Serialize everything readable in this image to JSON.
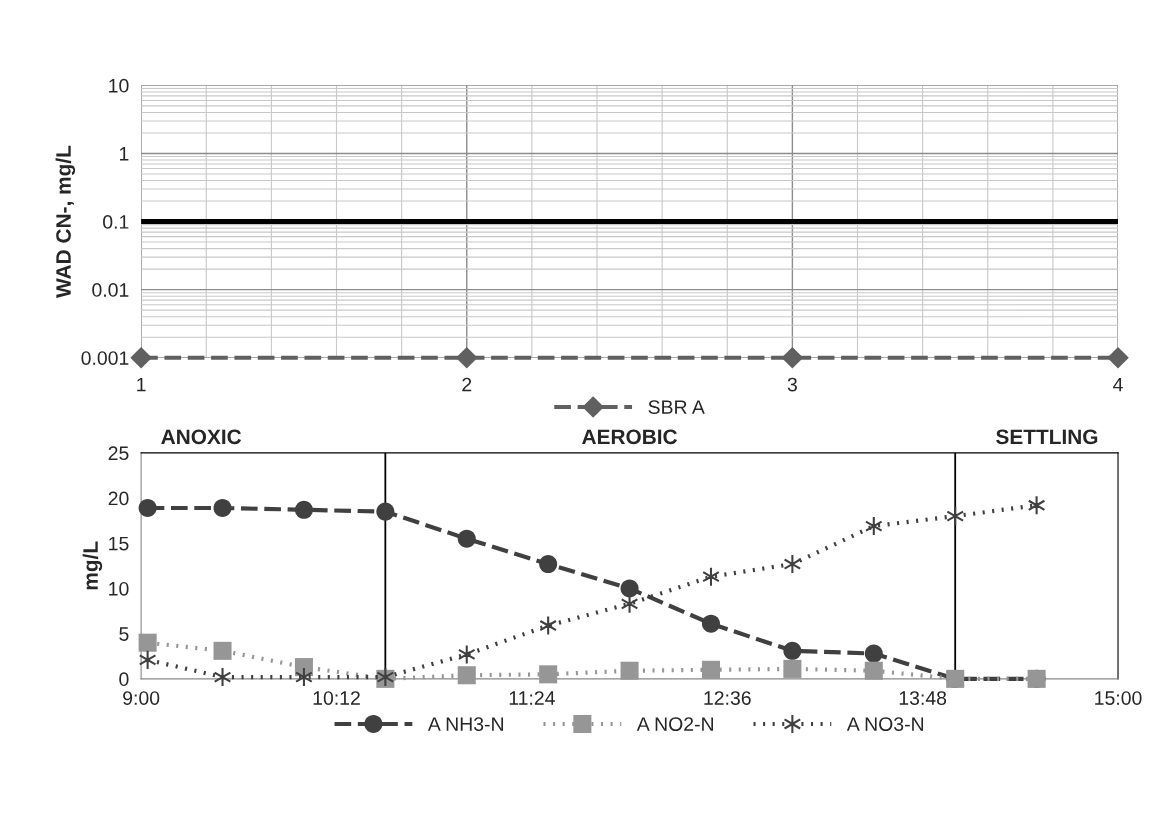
{
  "chart_data": [
    {
      "type": "line",
      "ylabel": "WAD CN-, mg/L",
      "x": [
        1,
        2,
        3,
        4
      ],
      "log": "y",
      "ylim": [
        0.001,
        10
      ],
      "yticks": [
        0.001,
        0.01,
        0.1,
        1,
        10
      ],
      "xlim": [
        1,
        4
      ],
      "xticks": [
        1,
        2,
        3,
        4
      ],
      "grid": true,
      "legend": "bottom",
      "marker": "diamond",
      "line_style": "dashed",
      "series": [
        {
          "name": "SBR A",
          "color": "#606060",
          "values": [
            0.001,
            0.001,
            0.001,
            0.001
          ]
        }
      ],
      "ref_lines": [
        {
          "axis": "y",
          "value": 0.1,
          "color": "#000000"
        }
      ]
    },
    {
      "type": "line",
      "ylabel": "mg/L",
      "x": [
        9.04,
        9.5,
        10.0,
        10.5,
        11.0,
        11.5,
        12.0,
        12.5,
        13.0,
        13.5,
        14.0,
        14.5
      ],
      "xlim": [
        9,
        15
      ],
      "xticks": [
        {
          "value": 9,
          "label": "9:00"
        },
        {
          "value": 10.2,
          "label": "10:12"
        },
        {
          "value": 11.4,
          "label": "11:24"
        },
        {
          "value": 12.6,
          "label": "12:36"
        },
        {
          "value": 13.8,
          "label": "13:48"
        },
        {
          "value": 15,
          "label": "15:00"
        }
      ],
      "ylim": [
        0,
        25
      ],
      "yticks": [
        0,
        5,
        10,
        15,
        20,
        25
      ],
      "grid": false,
      "legend": "bottom",
      "series": [
        {
          "name": "A NH3-N",
          "color": "#404040",
          "marker": "circle",
          "line_style": "dashed",
          "values": [
            18.9,
            18.9,
            18.7,
            18.5,
            15.5,
            12.7,
            10.0,
            6.1,
            3.1,
            2.8,
            0,
            0
          ]
        },
        {
          "name": "A NO2-N",
          "color": "#969696",
          "marker": "square",
          "line_style": "dotted",
          "values": [
            4.0,
            3.1,
            1.3,
            0,
            0.4,
            0.5,
            0.9,
            1.0,
            1.1,
            0.9,
            0,
            0
          ]
        },
        {
          "name": "A NO3-N",
          "color": "#404040",
          "marker": "cross",
          "line_style": "dotted",
          "values": [
            2.1,
            0.2,
            0.2,
            0.2,
            2.7,
            5.9,
            8.3,
            11.3,
            12.7,
            16.9,
            18.0,
            19.2
          ]
        }
      ],
      "ref_lines": [
        {
          "axis": "x",
          "value": 10.5,
          "color": "#000000"
        },
        {
          "axis": "x",
          "value": 14.0,
          "color": "#000000"
        }
      ],
      "annotations": [
        "ANOXIC",
        "AEROBIC",
        "SETTLING"
      ]
    }
  ]
}
